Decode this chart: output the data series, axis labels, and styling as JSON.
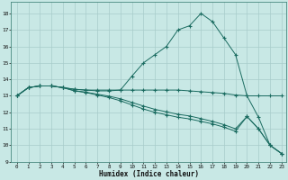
{
  "xlabel": "Humidex (Indice chaleur)",
  "bg_color": "#c8e8e5",
  "grid_color": "#a8ccca",
  "line_color": "#1a6b60",
  "xlim_min": -0.5,
  "xlim_max": 23.4,
  "ylim_min": 9.0,
  "ylim_max": 18.7,
  "yticks": [
    9,
    10,
    11,
    12,
    13,
    14,
    15,
    16,
    17,
    18
  ],
  "xticks": [
    0,
    1,
    2,
    3,
    4,
    5,
    6,
    7,
    8,
    9,
    10,
    11,
    12,
    13,
    14,
    15,
    16,
    17,
    18,
    19,
    20,
    21,
    22,
    23
  ],
  "lines": [
    {
      "x": [
        0,
        1,
        2,
        3,
        4,
        5,
        6,
        7,
        8,
        9,
        10,
        11,
        12,
        13,
        14,
        15,
        16,
        17,
        18,
        19,
        20,
        21,
        22,
        23
      ],
      "y": [
        13,
        13.5,
        13.6,
        13.6,
        13.5,
        13.4,
        13.35,
        13.35,
        13.35,
        13.35,
        13.35,
        13.35,
        13.35,
        13.35,
        13.35,
        13.3,
        13.25,
        13.2,
        13.15,
        13.05,
        13.0,
        13.0,
        13.0,
        13.0
      ]
    },
    {
      "x": [
        0,
        1,
        2,
        3,
        4,
        5,
        6,
        7,
        8,
        9,
        10,
        11,
        12,
        13,
        14,
        15,
        16,
        17,
        18,
        19,
        20,
        21,
        22,
        23
      ],
      "y": [
        13,
        13.5,
        13.6,
        13.6,
        13.5,
        13.4,
        13.35,
        13.3,
        13.3,
        13.35,
        14.2,
        15.0,
        15.5,
        16.0,
        17.0,
        17.25,
        18.0,
        17.5,
        16.5,
        15.5,
        13.0,
        11.7,
        10.0,
        9.5
      ]
    },
    {
      "x": [
        0,
        1,
        2,
        3,
        4,
        5,
        6,
        7,
        8,
        9,
        10,
        11,
        12,
        13,
        14,
        15,
        16,
        17,
        18,
        19,
        20,
        21,
        22,
        23
      ],
      "y": [
        13,
        13.5,
        13.6,
        13.6,
        13.5,
        13.3,
        13.2,
        13.05,
        12.9,
        12.7,
        12.45,
        12.2,
        12.0,
        11.85,
        11.7,
        11.6,
        11.45,
        11.3,
        11.1,
        10.85,
        11.75,
        11.0,
        10.0,
        9.5
      ]
    },
    {
      "x": [
        0,
        1,
        2,
        3,
        4,
        5,
        6,
        7,
        8,
        9,
        10,
        11,
        12,
        13,
        14,
        15,
        16,
        17,
        18,
        19,
        20,
        21,
        22,
        23
      ],
      "y": [
        13,
        13.5,
        13.6,
        13.6,
        13.5,
        13.32,
        13.22,
        13.1,
        12.98,
        12.82,
        12.6,
        12.38,
        12.18,
        12.03,
        11.88,
        11.78,
        11.62,
        11.45,
        11.25,
        11.0,
        11.75,
        11.0,
        10.0,
        9.5
      ]
    }
  ]
}
